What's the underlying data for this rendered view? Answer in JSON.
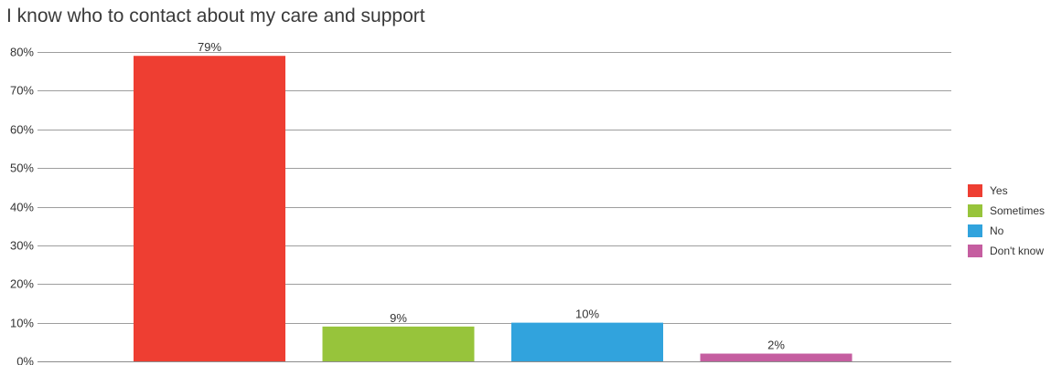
{
  "chart_data": {
    "type": "bar",
    "title": "I know who to contact about my care and support",
    "xlabel": "",
    "ylabel": "",
    "categories": [
      "Yes",
      "Sometimes",
      "No",
      "Don't know"
    ],
    "values": [
      79,
      9,
      10,
      2
    ],
    "value_labels": [
      "79%",
      "9%",
      "10%",
      "2%"
    ],
    "colors": [
      "#ee3e32",
      "#97c43b",
      "#31a3dd",
      "#c55ea0"
    ],
    "ylim": [
      0,
      80
    ],
    "y_ticks": [
      {
        "value": 0,
        "label": "0%"
      },
      {
        "value": 10,
        "label": "10%"
      },
      {
        "value": 20,
        "label": "20%"
      },
      {
        "value": 30,
        "label": "30%"
      },
      {
        "value": 40,
        "label": "40%"
      },
      {
        "value": 50,
        "label": "50%"
      },
      {
        "value": 60,
        "label": "60%"
      },
      {
        "value": 70,
        "label": "70%"
      },
      {
        "value": 80,
        "label": "80%"
      }
    ],
    "grid": true,
    "legend": {
      "position": "right",
      "entries": [
        "Yes",
        "Sometimes",
        "No",
        "Don't know"
      ]
    }
  }
}
